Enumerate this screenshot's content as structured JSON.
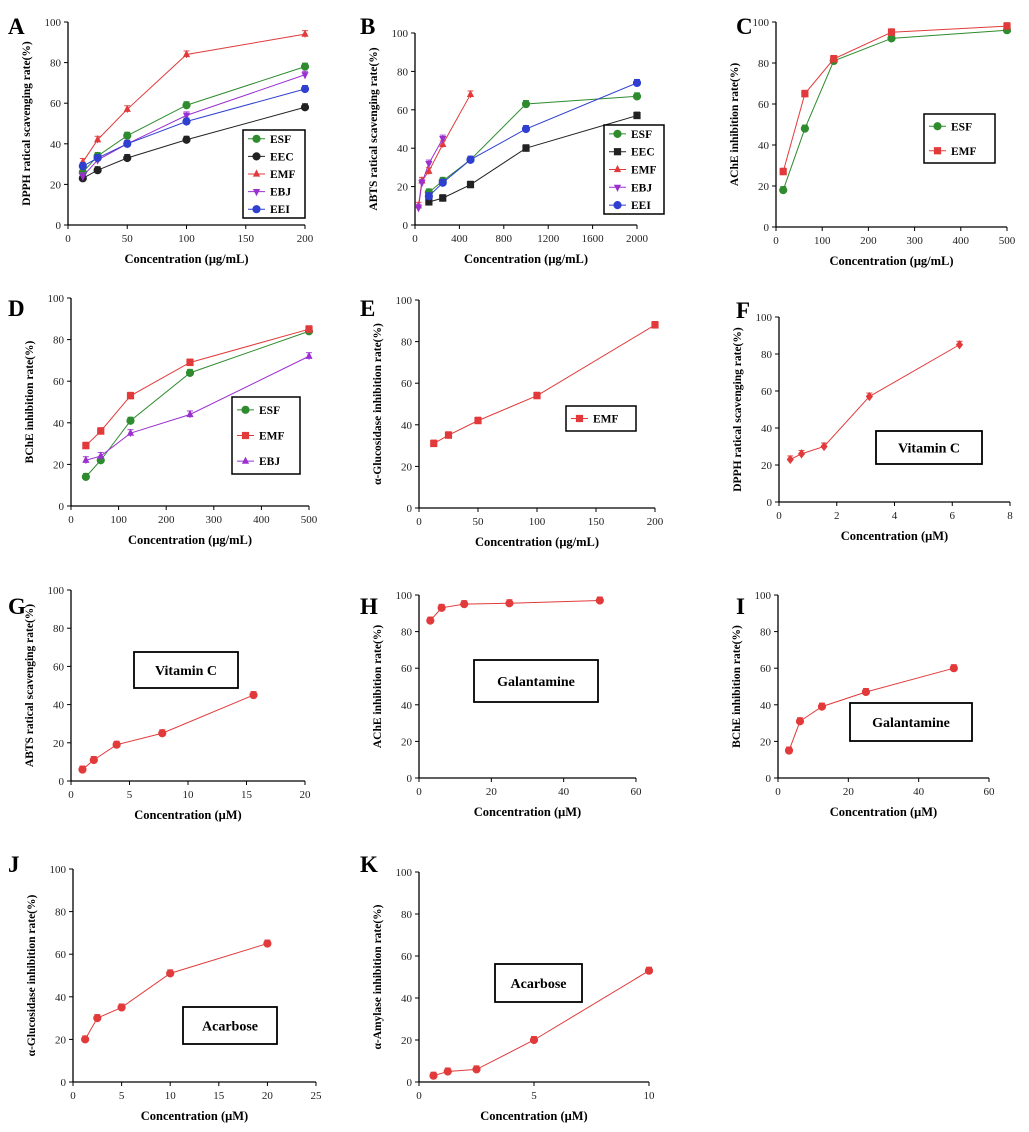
{
  "figure_caption": "",
  "chart_data": [
    {
      "id": "A",
      "type": "line",
      "panel_label": "A",
      "xlabel": "Concentration (μg/mL)",
      "ylabel": "DPPH ratical scavenging rate(%)",
      "xlim": [
        0,
        200
      ],
      "ylim": [
        0,
        100
      ],
      "xticks": [
        0,
        50,
        100,
        150,
        200
      ],
      "yticks": [
        0,
        20,
        40,
        60,
        80,
        100
      ],
      "legend_position": "lower-right",
      "series": [
        {
          "name": "ESF",
          "color": "#2e8b2e",
          "marker": "circle",
          "x": [
            12.5,
            25,
            50,
            100,
            200
          ],
          "y": [
            26,
            34,
            44,
            59,
            78
          ]
        },
        {
          "name": "EEC",
          "color": "#222222",
          "marker": "circle",
          "x": [
            12.5,
            25,
            50,
            100,
            200
          ],
          "y": [
            23,
            27,
            33,
            42,
            58
          ]
        },
        {
          "name": "EMF",
          "color": "#e23a3a",
          "marker": "triangle",
          "x": [
            12.5,
            25,
            50,
            100,
            200
          ],
          "y": [
            31,
            42,
            57,
            84,
            94
          ]
        },
        {
          "name": "EBJ",
          "color": "#9b30d0",
          "marker": "triangle-down",
          "x": [
            12.5,
            25,
            50,
            100,
            200
          ],
          "y": [
            24,
            32,
            40,
            54,
            74
          ]
        },
        {
          "name": "EEI",
          "color": "#2f3fd0",
          "marker": "circle",
          "x": [
            12.5,
            25,
            50,
            100,
            200
          ],
          "y": [
            29,
            33,
            40,
            51,
            67
          ]
        }
      ]
    },
    {
      "id": "B",
      "type": "line",
      "panel_label": "B",
      "xlabel": "Concentration (μg/mL)",
      "ylabel": "ABTS ratical scavenging rate(%)",
      "xlim": [
        0,
        2000
      ],
      "ylim": [
        0,
        100
      ],
      "xticks": [
        0,
        400,
        800,
        1200,
        1600,
        2000
      ],
      "yticks": [
        0,
        20,
        40,
        60,
        80,
        100
      ],
      "legend_position": "lower-right",
      "series": [
        {
          "name": "ESF",
          "color": "#2e8b2e",
          "marker": "circle",
          "x": [
            125,
            250,
            500,
            1000,
            2000
          ],
          "y": [
            17,
            23,
            34,
            63,
            67
          ]
        },
        {
          "name": "EEC",
          "color": "#222222",
          "marker": "square",
          "x": [
            125,
            250,
            500,
            1000,
            2000
          ],
          "y": [
            12,
            14,
            21,
            40,
            57
          ]
        },
        {
          "name": "EMF",
          "color": "#e23a3a",
          "marker": "triangle",
          "x": [
            31.25,
            62.5,
            125,
            250,
            500
          ],
          "y": [
            10,
            23,
            28,
            42,
            68
          ]
        },
        {
          "name": "EBJ",
          "color": "#9b30d0",
          "marker": "triangle-down",
          "x": [
            31.25,
            62.5,
            125,
            250
          ],
          "y": [
            9,
            22,
            32,
            45
          ]
        },
        {
          "name": "EEI",
          "color": "#2f3fd0",
          "marker": "circle",
          "x": [
            125,
            250,
            500,
            1000,
            2000
          ],
          "y": [
            15,
            22,
            34,
            50,
            74
          ]
        }
      ]
    },
    {
      "id": "C",
      "type": "line",
      "panel_label": "C",
      "xlabel": "Concentration (μg/mL)",
      "ylabel": "AChE inhibition rate(%)",
      "xlim": [
        0,
        500
      ],
      "ylim": [
        0,
        100
      ],
      "xticks": [
        0,
        100,
        200,
        300,
        400,
        500
      ],
      "yticks": [
        0,
        20,
        40,
        60,
        80,
        100
      ],
      "legend_position": "center-right",
      "series": [
        {
          "name": "ESF",
          "color": "#2e8b2e",
          "marker": "circle",
          "x": [
            15.6,
            62.5,
            125,
            250,
            500
          ],
          "y": [
            18,
            48,
            81,
            92,
            96
          ]
        },
        {
          "name": "EMF",
          "color": "#e23a3a",
          "marker": "square",
          "x": [
            15.6,
            62.5,
            125,
            250,
            500
          ],
          "y": [
            27,
            65,
            82,
            95,
            98
          ]
        }
      ]
    },
    {
      "id": "D",
      "type": "line",
      "panel_label": "D",
      "xlabel": "Concentration (μg/mL)",
      "ylabel": "BChE inhibition rate(%)",
      "xlim": [
        0,
        500
      ],
      "ylim": [
        0,
        100
      ],
      "xticks": [
        0,
        100,
        200,
        300,
        400,
        500
      ],
      "yticks": [
        0,
        20,
        40,
        60,
        80,
        100
      ],
      "legend_position": "lower-right",
      "series": [
        {
          "name": "ESF",
          "color": "#2e8b2e",
          "marker": "circle",
          "x": [
            31.25,
            62.5,
            125,
            250,
            500
          ],
          "y": [
            14,
            22,
            41,
            64,
            84
          ]
        },
        {
          "name": "EMF",
          "color": "#e23a3a",
          "marker": "square",
          "x": [
            31.25,
            62.5,
            125,
            250,
            500
          ],
          "y": [
            29,
            36,
            53,
            69,
            85
          ]
        },
        {
          "name": "EBJ",
          "color": "#9b30d0",
          "marker": "triangle",
          "x": [
            31.25,
            62.5,
            125,
            250,
            500
          ],
          "y": [
            22,
            24,
            35,
            44,
            72
          ]
        }
      ]
    },
    {
      "id": "E",
      "type": "line",
      "panel_label": "E",
      "xlabel": "Concentration (μg/mL)",
      "ylabel": "α-Glucosidase inhibition rate(%)",
      "xlim": [
        0,
        200
      ],
      "ylim": [
        0,
        100
      ],
      "xticks": [
        0,
        50,
        100,
        150,
        200
      ],
      "yticks": [
        0,
        20,
        40,
        60,
        80,
        100
      ],
      "legend_position": "center-right",
      "series": [
        {
          "name": "EMF",
          "color": "#e23a3a",
          "marker": "square",
          "x": [
            12.5,
            25,
            50,
            100,
            200
          ],
          "y": [
            31,
            35,
            42,
            54,
            88
          ]
        }
      ]
    },
    {
      "id": "F",
      "type": "line",
      "panel_label": "F",
      "xlabel": "Concentration (μM)",
      "ylabel": "DPPH ratical scavenging rate(%)",
      "xlim": [
        0,
        8
      ],
      "ylim": [
        0,
        100
      ],
      "xticks": [
        0,
        2,
        4,
        6,
        8
      ],
      "yticks": [
        0,
        20,
        40,
        60,
        80,
        100
      ],
      "legend_position": "lower-right",
      "box_label": "Vitamin C",
      "series": [
        {
          "name": "Vitamin C",
          "color": "#e23a3a",
          "marker": "diamond",
          "x": [
            0.39,
            0.78,
            1.56,
            3.13,
            6.25
          ],
          "y": [
            23,
            26,
            30,
            57,
            85
          ]
        }
      ]
    },
    {
      "id": "G",
      "type": "line",
      "panel_label": "G",
      "xlabel": "Concentration (μM)",
      "ylabel": "ABTS ratical scavenging rate(%)",
      "xlim": [
        0,
        20
      ],
      "ylim": [
        0,
        100
      ],
      "xticks": [
        0,
        5,
        10,
        15,
        20
      ],
      "yticks": [
        0,
        20,
        40,
        60,
        80,
        100
      ],
      "legend_position": "center",
      "box_label": "Vitamin C",
      "series": [
        {
          "name": "Vitamin C",
          "color": "#e23a3a",
          "marker": "circle",
          "x": [
            0.98,
            1.95,
            3.9,
            7.8,
            15.6
          ],
          "y": [
            6,
            11,
            19,
            25,
            45
          ]
        }
      ]
    },
    {
      "id": "H",
      "type": "line",
      "panel_label": "H",
      "xlabel": "Concentration (μM)",
      "ylabel": "AChE inhibition rate(%)",
      "xlim": [
        0,
        60
      ],
      "ylim": [
        0,
        100
      ],
      "xticks": [
        0,
        20,
        40,
        60
      ],
      "yticks": [
        0,
        20,
        40,
        60,
        80,
        100
      ],
      "legend_position": "center",
      "box_label": "Galantamine",
      "series": [
        {
          "name": "Galantamine",
          "color": "#e23a3a",
          "marker": "circle",
          "x": [
            3.13,
            6.25,
            12.5,
            25,
            50
          ],
          "y": [
            86,
            93,
            95,
            95.5,
            97
          ]
        }
      ]
    },
    {
      "id": "I",
      "type": "line",
      "panel_label": "I",
      "xlabel": "Concentration (μM)",
      "ylabel": "BChE inhibition rate(%)",
      "xlim": [
        0,
        60
      ],
      "ylim": [
        0,
        100
      ],
      "xticks": [
        0,
        20,
        40,
        60
      ],
      "yticks": [
        0,
        20,
        40,
        60,
        80,
        100
      ],
      "legend_position": "lower-right",
      "box_label": "Galantamine",
      "series": [
        {
          "name": "Galantamine",
          "color": "#e23a3a",
          "marker": "circle",
          "x": [
            3.13,
            6.25,
            12.5,
            25,
            50
          ],
          "y": [
            15,
            31,
            39,
            47,
            60
          ]
        }
      ]
    },
    {
      "id": "J",
      "type": "line",
      "panel_label": "J",
      "xlabel": "Concentration (μM)",
      "ylabel": "α-Glucosidase inhibition rate(%)",
      "xlim": [
        0,
        25
      ],
      "ylim": [
        0,
        100
      ],
      "xticks": [
        0,
        5,
        10,
        15,
        20,
        25
      ],
      "yticks": [
        0,
        20,
        40,
        60,
        80,
        100
      ],
      "legend_position": "lower-right",
      "box_label": "Acarbose",
      "series": [
        {
          "name": "Acarbose",
          "color": "#e23a3a",
          "marker": "circle",
          "x": [
            1.25,
            2.5,
            5,
            10,
            20
          ],
          "y": [
            20,
            30,
            35,
            51,
            65
          ]
        }
      ]
    },
    {
      "id": "K",
      "type": "line",
      "panel_label": "K",
      "xlabel": "Concentration (μM)",
      "ylabel": "α-Amylase inhibition rate(%)",
      "xlim": [
        0,
        10
      ],
      "ylim": [
        0,
        100
      ],
      "xticks": [
        0,
        5,
        10
      ],
      "yticks": [
        0,
        20,
        40,
        60,
        80,
        100
      ],
      "legend_position": "center-left",
      "box_label": "Acarbose",
      "series": [
        {
          "name": "Acarbose",
          "color": "#e23a3a",
          "marker": "circle",
          "x": [
            0.63,
            1.25,
            2.5,
            5,
            10
          ],
          "y": [
            3,
            5,
            6,
            20,
            53
          ]
        }
      ]
    }
  ]
}
